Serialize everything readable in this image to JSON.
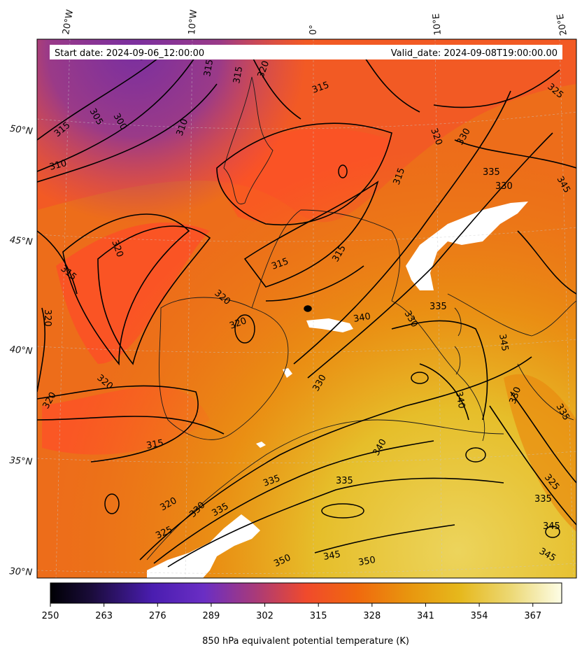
{
  "map": {
    "variable": "850 hPa equivalent potential temperature (K)",
    "start_date_label": "Start date: 2024-09-06_12:00:00",
    "valid_date_label": "Valid_date: 2024-09-08T19:00:00.00",
    "lon_labels": [
      "20°W",
      "10°W",
      "0°",
      "10°E",
      "20°E"
    ],
    "lat_labels": [
      "50°N",
      "45°N",
      "40°N",
      "35°N",
      "30°N"
    ],
    "contour_labels": [
      "305",
      "300",
      "305",
      "310",
      "315",
      "310",
      "315",
      "315",
      "320",
      "315",
      "320",
      "320",
      "320",
      "320",
      "315",
      "320",
      "315",
      "315",
      "320",
      "315",
      "320",
      "325",
      "330",
      "335",
      "330",
      "335",
      "340",
      "345",
      "350",
      "345",
      "350",
      "335",
      "330",
      "330",
      "335",
      "340",
      "345",
      "330",
      "335",
      "325",
      "325",
      "335",
      "345",
      "345",
      "315",
      "320",
      "330",
      "335",
      "340"
    ],
    "colormap": [
      "#000004",
      "#2a1160",
      "#5420c0",
      "#8a3a92",
      "#c0305e",
      "#f24e2c",
      "#ff5a28",
      "#ea7d10",
      "#e99a12",
      "#e7b922",
      "#e9cd49",
      "#f0e49a",
      "#fdfde4"
    ]
  },
  "colorbar": {
    "min": 250,
    "max": 374,
    "ticks": [
      "250",
      "263",
      "276",
      "289",
      "302",
      "315",
      "328",
      "341",
      "354",
      "367"
    ],
    "label": "850 hPa equivalent potential temperature (K)"
  }
}
